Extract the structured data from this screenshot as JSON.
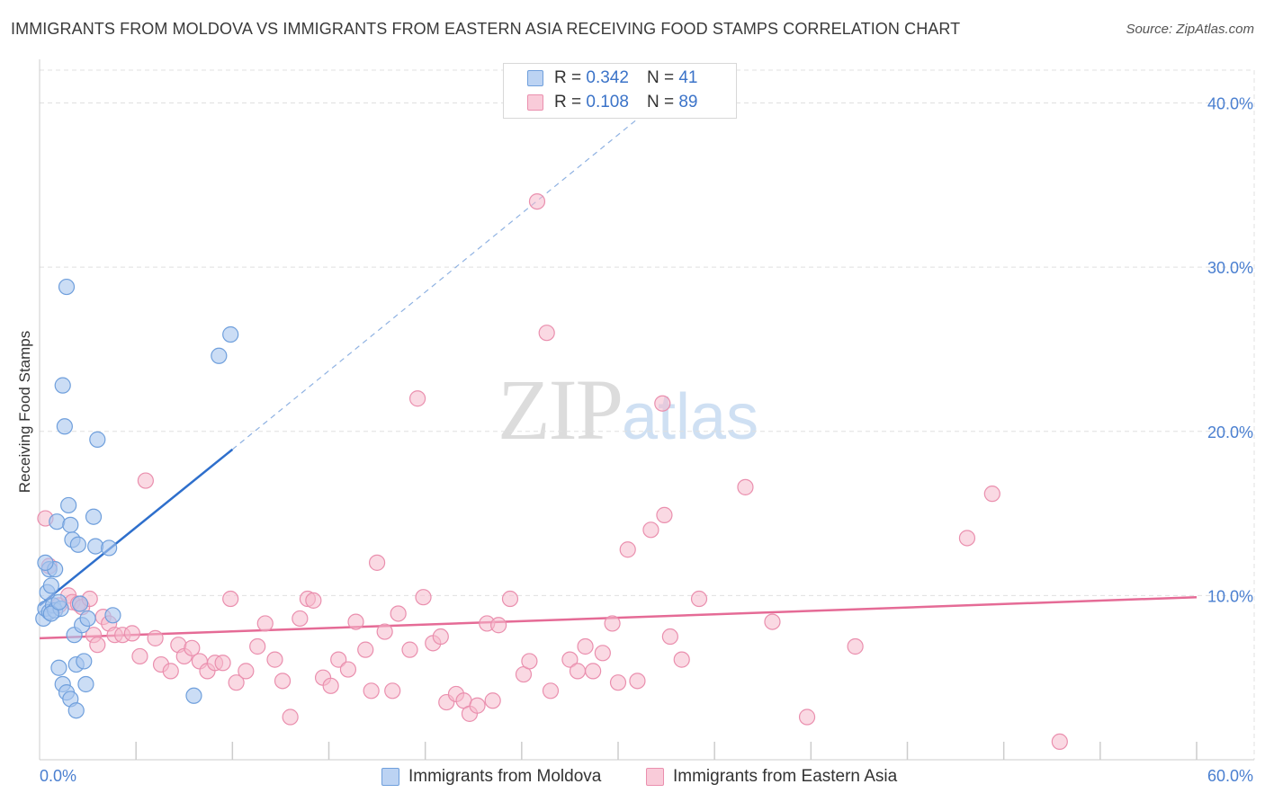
{
  "header": {
    "title": "IMMIGRANTS FROM MOLDOVA VS IMMIGRANTS FROM EASTERN ASIA RECEIVING FOOD STAMPS CORRELATION CHART",
    "source": "Source: ZipAtlas.com"
  },
  "watermark": {
    "zip": "ZIP",
    "atlas": "atlas"
  },
  "legend": {
    "moldova": {
      "r_label": "R =",
      "r_value": "0.342",
      "n_label": "N =",
      "n_value": "41"
    },
    "eastern_asia": {
      "r_label": "R =",
      "r_value": "0.108",
      "n_label": "N =",
      "n_value": "89"
    }
  },
  "colors": {
    "moldova_fill": "#a9c6ef",
    "moldova_stroke": "#6f9fdc",
    "moldova_line": "#2e6fcc",
    "eastern_asia_fill": "#f6b9cc",
    "eastern_asia_stroke": "#ea8fae",
    "eastern_asia_line": "#e56b96",
    "tick_text": "#4a7fd0",
    "grid": "#e0e0e0"
  },
  "chart_data": {
    "type": "scatter",
    "title": "IMMIGRANTS FROM MOLDOVA VS IMMIGRANTS FROM EASTERN ASIA RECEIVING FOOD STAMPS CORRELATION CHART",
    "xlabel": "",
    "ylabel": "Receiving Food Stamps",
    "xlim": [
      0,
      60
    ],
    "ylim": [
      0,
      42
    ],
    "x_ticks": [
      0,
      60
    ],
    "x_tick_labels": [
      "0.0%",
      "60.0%"
    ],
    "y_ticks": [
      10,
      20,
      30,
      40
    ],
    "y_tick_labels": [
      "10.0%",
      "20.0%",
      "30.0%",
      "40.0%"
    ],
    "grid": true,
    "legend_position": "top-center",
    "series": [
      {
        "name": "Immigrants from Moldova",
        "color": "#6f9fdc",
        "points": [
          [
            0.2,
            8.6
          ],
          [
            0.3,
            9.2
          ],
          [
            0.4,
            10.2
          ],
          [
            0.5,
            9.0
          ],
          [
            0.5,
            11.6
          ],
          [
            0.6,
            10.6
          ],
          [
            0.7,
            9.4
          ],
          [
            0.8,
            9.1
          ],
          [
            0.8,
            11.6
          ],
          [
            0.9,
            14.5
          ],
          [
            1.0,
            5.6
          ],
          [
            1.1,
            9.2
          ],
          [
            1.2,
            4.6
          ],
          [
            1.2,
            22.8
          ],
          [
            1.3,
            20.3
          ],
          [
            1.4,
            28.8
          ],
          [
            1.4,
            4.1
          ],
          [
            1.5,
            15.5
          ],
          [
            1.6,
            3.7
          ],
          [
            1.6,
            14.3
          ],
          [
            1.7,
            13.4
          ],
          [
            1.8,
            7.6
          ],
          [
            1.9,
            5.8
          ],
          [
            1.9,
            3.0
          ],
          [
            2.0,
            13.1
          ],
          [
            2.1,
            9.5
          ],
          [
            2.2,
            8.2
          ],
          [
            2.3,
            6.0
          ],
          [
            2.4,
            4.6
          ],
          [
            2.5,
            8.6
          ],
          [
            2.8,
            14.8
          ],
          [
            2.9,
            13.0
          ],
          [
            3.0,
            19.5
          ],
          [
            3.6,
            12.9
          ],
          [
            3.8,
            8.8
          ],
          [
            8.0,
            3.9
          ],
          [
            9.3,
            24.6
          ],
          [
            9.9,
            25.9
          ],
          [
            0.3,
            12.0
          ],
          [
            0.6,
            8.9
          ],
          [
            1.0,
            9.6
          ]
        ],
        "trend": {
          "x": [
            0,
            10
          ],
          "y": [
            9.4,
            18.9
          ],
          "extended_to": [
            31.5,
            39.5
          ]
        }
      },
      {
        "name": "Immigrants from Eastern Asia",
        "color": "#ea8fae",
        "points": [
          [
            0.3,
            14.7
          ],
          [
            0.5,
            11.8
          ],
          [
            1.0,
            9.4
          ],
          [
            1.5,
            10.0
          ],
          [
            1.7,
            9.6
          ],
          [
            2.0,
            9.5
          ],
          [
            2.2,
            9.3
          ],
          [
            2.6,
            9.8
          ],
          [
            2.8,
            7.6
          ],
          [
            3.0,
            7.0
          ],
          [
            3.3,
            8.7
          ],
          [
            3.6,
            8.3
          ],
          [
            3.9,
            7.6
          ],
          [
            4.3,
            7.6
          ],
          [
            4.8,
            7.7
          ],
          [
            5.2,
            6.3
          ],
          [
            5.5,
            17.0
          ],
          [
            6.0,
            7.4
          ],
          [
            6.3,
            5.8
          ],
          [
            6.8,
            5.4
          ],
          [
            7.2,
            7.0
          ],
          [
            7.5,
            6.3
          ],
          [
            7.9,
            6.8
          ],
          [
            8.3,
            6.0
          ],
          [
            8.7,
            5.4
          ],
          [
            9.1,
            5.9
          ],
          [
            9.5,
            5.9
          ],
          [
            9.9,
            9.8
          ],
          [
            10.2,
            4.7
          ],
          [
            10.7,
            5.4
          ],
          [
            11.3,
            6.9
          ],
          [
            11.7,
            8.3
          ],
          [
            12.2,
            6.1
          ],
          [
            12.6,
            4.8
          ],
          [
            13.0,
            2.6
          ],
          [
            13.5,
            8.6
          ],
          [
            13.9,
            9.8
          ],
          [
            14.2,
            9.7
          ],
          [
            14.7,
            5.0
          ],
          [
            15.1,
            4.5
          ],
          [
            15.5,
            6.1
          ],
          [
            16.0,
            5.5
          ],
          [
            16.4,
            8.4
          ],
          [
            16.9,
            6.7
          ],
          [
            17.2,
            4.2
          ],
          [
            17.5,
            12.0
          ],
          [
            17.9,
            7.8
          ],
          [
            18.3,
            4.2
          ],
          [
            18.6,
            8.9
          ],
          [
            19.2,
            6.7
          ],
          [
            19.6,
            22.0
          ],
          [
            19.9,
            9.9
          ],
          [
            20.4,
            7.1
          ],
          [
            20.8,
            7.5
          ],
          [
            21.1,
            3.5
          ],
          [
            21.6,
            4.0
          ],
          [
            22.0,
            3.6
          ],
          [
            22.3,
            2.8
          ],
          [
            22.7,
            3.3
          ],
          [
            23.2,
            8.3
          ],
          [
            23.5,
            3.6
          ],
          [
            23.8,
            8.2
          ],
          [
            24.4,
            9.8
          ],
          [
            25.1,
            5.2
          ],
          [
            25.4,
            6.0
          ],
          [
            25.8,
            34.0
          ],
          [
            26.3,
            26.0
          ],
          [
            26.5,
            4.2
          ],
          [
            27.5,
            6.1
          ],
          [
            27.9,
            5.4
          ],
          [
            28.3,
            6.9
          ],
          [
            28.7,
            5.4
          ],
          [
            29.2,
            6.5
          ],
          [
            29.7,
            8.3
          ],
          [
            30.0,
            4.7
          ],
          [
            30.5,
            12.8
          ],
          [
            31.0,
            4.8
          ],
          [
            31.7,
            14.0
          ],
          [
            32.3,
            21.7
          ],
          [
            32.4,
            14.9
          ],
          [
            32.7,
            7.5
          ],
          [
            33.3,
            6.1
          ],
          [
            34.2,
            9.8
          ],
          [
            36.6,
            16.6
          ],
          [
            38.0,
            8.4
          ],
          [
            39.8,
            2.6
          ],
          [
            42.3,
            6.9
          ],
          [
            48.1,
            13.5
          ],
          [
            49.4,
            16.2
          ],
          [
            52.9,
            1.1
          ]
        ],
        "trend": {
          "x": [
            0,
            60
          ],
          "y": [
            7.4,
            9.9
          ]
        }
      }
    ]
  },
  "bottom_legend": {
    "moldova_label": "Immigrants from Moldova",
    "eastern_asia_label": "Immigrants from Eastern Asia"
  }
}
